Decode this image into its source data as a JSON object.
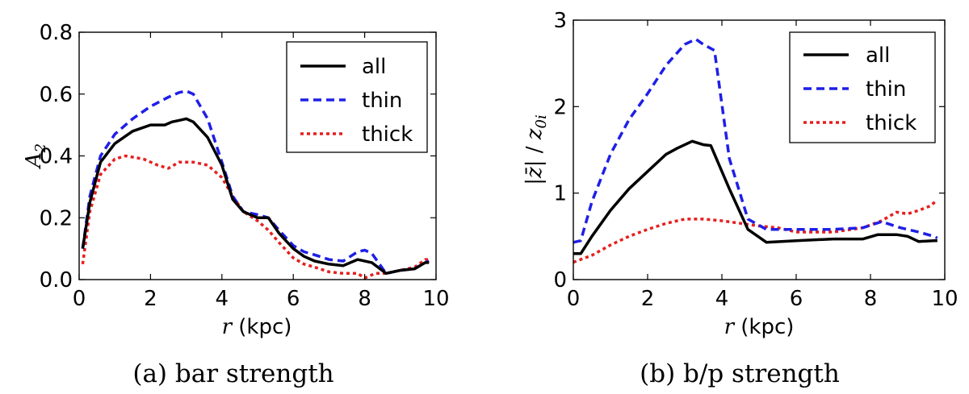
{
  "chart_data": [
    {
      "type": "line",
      "title": "",
      "caption": "(a) bar strength",
      "xlabel_var": "r",
      "xlabel_unit": "(kpc)",
      "ylabel": "A",
      "ylabel_sub": "2",
      "xlim": [
        0,
        10
      ],
      "ylim": [
        0,
        0.8
      ],
      "xticks": [
        "0",
        "2",
        "4",
        "6",
        "8",
        "10"
      ],
      "yticks": [
        "0.0",
        "0.2",
        "0.4",
        "0.6",
        "0.8"
      ],
      "xtick_values": [
        0,
        2,
        4,
        6,
        8,
        10
      ],
      "ytick_values": [
        0,
        0.2,
        0.4,
        0.6,
        0.8
      ],
      "legend_position": "top-right",
      "series": [
        {
          "name": "all",
          "color": "#000000",
          "style": "solid",
          "x": [
            0.1,
            0.3,
            0.6,
            1.0,
            1.5,
            2.0,
            2.4,
            2.6,
            2.8,
            3.0,
            3.2,
            3.6,
            4.0,
            4.3,
            4.6,
            5.0,
            5.3,
            5.6,
            6.0,
            6.3,
            6.6,
            7.0,
            7.4,
            7.8,
            8.2,
            8.6,
            9.0,
            9.4,
            9.7,
            9.8
          ],
          "y": [
            0.1,
            0.25,
            0.38,
            0.44,
            0.48,
            0.5,
            0.5,
            0.51,
            0.515,
            0.52,
            0.51,
            0.46,
            0.37,
            0.26,
            0.22,
            0.2,
            0.2,
            0.15,
            0.1,
            0.075,
            0.06,
            0.05,
            0.045,
            0.065,
            0.055,
            0.02,
            0.03,
            0.035,
            0.055,
            0.055
          ]
        },
        {
          "name": "thin",
          "color": "#1f1fe6",
          "style": "dashed",
          "x": [
            0.1,
            0.3,
            0.6,
            1.0,
            1.5,
            2.0,
            2.5,
            2.8,
            3.0,
            3.2,
            3.6,
            4.0,
            4.3,
            4.6,
            5.0,
            5.3,
            5.6,
            6.0,
            6.3,
            6.6,
            7.0,
            7.4,
            7.8,
            8.0,
            8.2,
            8.6,
            9.0,
            9.4,
            9.7,
            9.8
          ],
          "y": [
            0.1,
            0.27,
            0.4,
            0.47,
            0.52,
            0.56,
            0.59,
            0.605,
            0.61,
            0.6,
            0.52,
            0.38,
            0.27,
            0.22,
            0.21,
            0.2,
            0.16,
            0.11,
            0.09,
            0.08,
            0.065,
            0.06,
            0.09,
            0.095,
            0.085,
            0.02,
            0.03,
            0.035,
            0.055,
            0.06
          ]
        },
        {
          "name": "thick",
          "color": "#e61f1f",
          "style": "dotted",
          "x": [
            0.1,
            0.3,
            0.6,
            1.0,
            1.3,
            1.8,
            2.2,
            2.5,
            2.8,
            3.2,
            3.6,
            4.0,
            4.3,
            4.6,
            5.0,
            5.3,
            5.6,
            6.0,
            6.3,
            6.6,
            7.0,
            7.4,
            7.8,
            8.0,
            8.3,
            8.6,
            9.0,
            9.4,
            9.7,
            9.8
          ],
          "y": [
            0.05,
            0.22,
            0.34,
            0.39,
            0.4,
            0.39,
            0.37,
            0.36,
            0.38,
            0.38,
            0.37,
            0.33,
            0.27,
            0.22,
            0.19,
            0.16,
            0.12,
            0.07,
            0.05,
            0.04,
            0.025,
            0.02,
            0.02,
            0.005,
            0.02,
            0.02,
            0.03,
            0.04,
            0.065,
            0.065
          ]
        }
      ]
    },
    {
      "type": "line",
      "title": "",
      "caption": "(b) b/p strength",
      "xlabel_var": "r",
      "xlabel_unit": "(kpc)",
      "ylabel_num": "|z̄|",
      "ylabel_den": "z",
      "ylabel_den_sub": "0i",
      "xlim": [
        0,
        10
      ],
      "ylim": [
        0,
        3
      ],
      "xticks": [
        "0",
        "2",
        "4",
        "6",
        "8",
        "10"
      ],
      "yticks": [
        "0",
        "1",
        "2",
        "3"
      ],
      "xtick_values": [
        0,
        2,
        4,
        6,
        8,
        10
      ],
      "ytick_values": [
        0,
        1,
        2,
        3
      ],
      "legend_position": "top-right",
      "series": [
        {
          "name": "all",
          "color": "#000000",
          "style": "solid",
          "x": [
            0.0,
            0.2,
            0.5,
            1.0,
            1.5,
            2.0,
            2.5,
            2.8,
            3.2,
            3.5,
            3.7,
            4.2,
            4.7,
            5.2,
            6.0,
            7.0,
            7.8,
            8.2,
            8.7,
            9.0,
            9.3,
            9.7,
            9.8
          ],
          "y": [
            0.3,
            0.3,
            0.5,
            0.8,
            1.05,
            1.25,
            1.45,
            1.52,
            1.6,
            1.56,
            1.55,
            1.05,
            0.58,
            0.43,
            0.45,
            0.47,
            0.47,
            0.52,
            0.52,
            0.5,
            0.44,
            0.45,
            0.45
          ]
        },
        {
          "name": "thin",
          "color": "#1f1fe6",
          "style": "dashed",
          "x": [
            0.0,
            0.2,
            0.5,
            1.0,
            1.5,
            2.0,
            2.5,
            3.0,
            3.3,
            3.5,
            3.8,
            4.2,
            4.7,
            5.2,
            6.0,
            7.0,
            7.8,
            8.3,
            8.8,
            9.3,
            9.7,
            9.8
          ],
          "y": [
            0.43,
            0.45,
            0.9,
            1.45,
            1.85,
            2.15,
            2.48,
            2.72,
            2.78,
            2.72,
            2.65,
            1.4,
            0.7,
            0.58,
            0.58,
            0.58,
            0.6,
            0.67,
            0.6,
            0.55,
            0.5,
            0.48
          ]
        },
        {
          "name": "thick",
          "color": "#e61f1f",
          "style": "dotted",
          "x": [
            0.0,
            0.5,
            1.0,
            1.5,
            2.0,
            2.5,
            3.0,
            3.5,
            4.0,
            4.5,
            5.0,
            5.5,
            6.0,
            7.0,
            7.8,
            8.3,
            8.7,
            9.0,
            9.3,
            9.6,
            9.8
          ],
          "y": [
            0.2,
            0.28,
            0.4,
            0.5,
            0.58,
            0.65,
            0.7,
            0.7,
            0.68,
            0.65,
            0.62,
            0.6,
            0.55,
            0.55,
            0.6,
            0.68,
            0.78,
            0.76,
            0.8,
            0.85,
            0.92
          ]
        }
      ]
    }
  ]
}
